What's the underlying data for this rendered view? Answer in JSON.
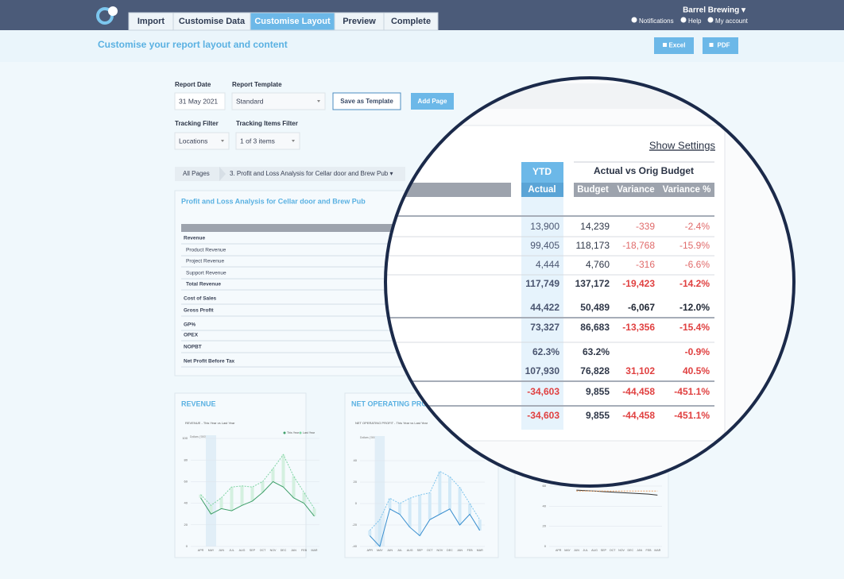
{
  "nav": {
    "tabs": [
      "Import",
      "Customise Data",
      "Customise Layout",
      "Preview",
      "Complete"
    ],
    "active": 2,
    "account": "Barrel Brewing ▾",
    "links": [
      "Notifications",
      "Help",
      "My account"
    ]
  },
  "header": {
    "title": "Customise your report layout and content",
    "buttons": [
      "Excel",
      "PDF"
    ]
  },
  "form": {
    "report_date": {
      "label": "Report Date",
      "value": "31 May 2021"
    },
    "report_template": {
      "label": "Report Template",
      "value": "Standard"
    },
    "save_template": "Save as Template",
    "add_page": "Add Page",
    "tracking_filter": {
      "label": "Tracking Filter",
      "value": "Locations"
    },
    "tracking_items_filter": {
      "label": "Tracking Items Filter",
      "value": "1 of 3 items"
    }
  },
  "breadcrumb": [
    "All Pages",
    "3. Profit and Loss Analysis for Cellar door and Brew Pub ▾"
  ],
  "report": {
    "title": "Profit and Loss Analysis for Cellar door and Brew Pub",
    "rows": [
      {
        "label": "Revenue",
        "bold": true
      },
      {
        "label": "Product Revenue",
        "indent": true
      },
      {
        "label": "Project Revenue",
        "indent": true
      },
      {
        "label": "Support Revenue",
        "indent": true
      },
      {
        "label": "Total Revenue",
        "bold": true,
        "indent": true
      },
      {
        "label": "Cost of Sales",
        "bold": true
      },
      {
        "label": "Gross Profit",
        "bold": true
      },
      {
        "label": "GP%",
        "bold": true
      },
      {
        "label": "OPEX",
        "bold": true
      },
      {
        "label": "NOPBT",
        "bold": true
      },
      {
        "label": "Net Profit Before Tax",
        "bold": true
      }
    ]
  },
  "magnifier": {
    "show_settings": "Show Settings",
    "ytd": "YTD",
    "group": "Actual vs Orig Budget",
    "columns": [
      "Actual",
      "Budget",
      "Variance",
      "Variance %"
    ],
    "rows": [
      {
        "actual": "13,900",
        "budget": "14,239",
        "variance": "-339",
        "variance_pct": "-2.4%",
        "variance_color": "#e06a6a"
      },
      {
        "actual": "99,405",
        "budget": "118,173",
        "variance": "-18,768",
        "variance_pct": "-15.9%",
        "variance_color": "#e06a6a"
      },
      {
        "actual": "4,444",
        "budget": "4,760",
        "variance": "-316",
        "variance_pct": "-6.6%",
        "variance_color": "#e06a6a"
      },
      {
        "actual": "117,749",
        "budget": "137,172",
        "variance": "-19,423",
        "variance_pct": "-14.2%",
        "bold": true,
        "variance_color": "#e04040"
      },
      {
        "actual": "44,422",
        "budget": "50,489",
        "variance": "-6,067",
        "variance_pct": "-12.0%",
        "bold": true,
        "variance_color": "#1f2633"
      },
      {
        "actual": "73,327",
        "budget": "86,683",
        "variance": "-13,356",
        "variance_pct": "-15.4%",
        "bold": true,
        "variance_color": "#e04040"
      },
      {
        "actual": "62.3%",
        "budget": "63.2%",
        "variance": null,
        "variance_pct": "-0.9%",
        "bold": true,
        "variance_color": "#e04040"
      },
      {
        "actual": "107,930",
        "budget": "76,828",
        "variance": "31,102",
        "variance_pct": "40.5%",
        "bold": true,
        "variance_color": "#e04040"
      },
      {
        "actual": "-34,603",
        "budget": "9,855",
        "variance": "-44,458",
        "variance_pct": "-451.1%",
        "bold": true,
        "variance_color": "#e04040",
        "actual_color": "#e04040"
      },
      {
        "actual": "-34,603",
        "budget": "9,855",
        "variance": "-44,458",
        "variance_pct": "-451.1%",
        "bold": true,
        "variance_color": "#e04040",
        "actual_color": "#e04040"
      }
    ]
  },
  "charts": [
    {
      "type": "line",
      "title": "REVENUE",
      "subtitle": "REVENUE - This Year vs Last Year",
      "ylabel": "Dollars ('000)",
      "categories": [
        "APR",
        "MAY",
        "JUN",
        "JUL",
        "AUG",
        "SEP",
        "OCT",
        "NOV",
        "DEC",
        "JAN",
        "FEB",
        "MAR"
      ],
      "ylim": [
        0,
        100
      ],
      "yticks": [
        0,
        20,
        40,
        60,
        80,
        100
      ],
      "range_bars": "#d4f0e0",
      "legend": true,
      "series": [
        {
          "name": "This Year",
          "color": "#3f9f6a",
          "values": [
            45,
            30,
            35,
            33,
            38,
            42,
            50,
            60,
            55,
            45,
            40,
            28
          ]
        },
        {
          "name": "Last Year",
          "color": "#7fd4a4",
          "dash": true,
          "values": [
            48,
            38,
            45,
            55,
            56,
            55,
            60,
            72,
            85,
            65,
            50,
            35
          ]
        }
      ]
    },
    {
      "type": "line",
      "title": "NET OPERATING PROFIT",
      "subtitle": "NET OPERATING PROFIT - This Year vs Last Year",
      "ylabel": "Dollars ('000)",
      "categories": [
        "APR",
        "MAY",
        "JUN",
        "JUL",
        "AUG",
        "SEP",
        "OCT",
        "NOV",
        "DEC",
        "JAN",
        "FEB",
        "MAR"
      ],
      "ylim": [
        -40,
        60
      ],
      "yticks": [
        -40,
        -20,
        0,
        20,
        40
      ],
      "range_bars": "#d2e9f7",
      "series": [
        {
          "name": "This Year",
          "color": "#3a8fcf",
          "values": [
            -30,
            -40,
            -5,
            -10,
            -22,
            -30,
            -15,
            -10,
            -5,
            -20,
            -10,
            -25
          ]
        },
        {
          "name": "Last Year",
          "color": "#7cc3ec",
          "dash": true,
          "values": [
            -25,
            -15,
            5,
            0,
            5,
            8,
            10,
            30,
            25,
            15,
            0,
            -15
          ]
        }
      ]
    },
    {
      "type": "line",
      "categories": [
        "APR",
        "MAY",
        "JUN",
        "JUL",
        "AUG",
        "SEP",
        "OCT",
        "NOV",
        "DEC",
        "JAN",
        "FEB",
        "MAR"
      ],
      "ylim": [
        0,
        60
      ],
      "yticks": [
        0,
        20,
        40,
        60
      ],
      "series": [
        {
          "name": "This Year",
          "color": "#333333",
          "values": [
            null,
            null,
            56,
            55.5,
            55,
            54.5,
            54,
            53.5,
            53,
            52.5,
            52,
            51
          ]
        },
        {
          "name": "Last Year",
          "color": "#f0a060",
          "dash": true,
          "values": [
            null,
            null,
            55,
            55,
            55,
            55,
            55,
            55,
            55,
            55,
            55,
            55
          ]
        }
      ]
    }
  ]
}
